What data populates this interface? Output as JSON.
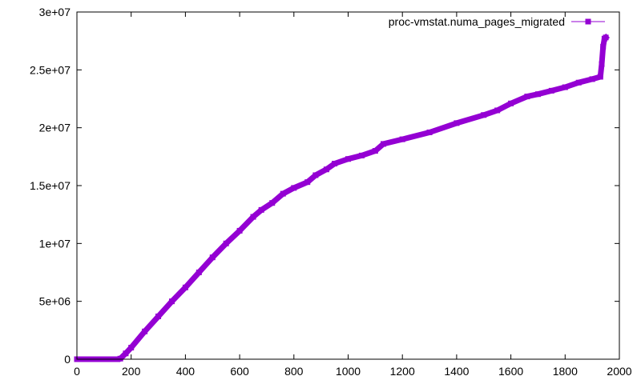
{
  "chart_data": {
    "type": "line",
    "title": "",
    "xlabel": "",
    "ylabel": "",
    "xlim": [
      0,
      2000
    ],
    "ylim": [
      0,
      30000000
    ],
    "grid": false,
    "legend_position": "top-right",
    "x_ticks": [
      {
        "value": 0,
        "label": "0"
      },
      {
        "value": 200,
        "label": "200"
      },
      {
        "value": 400,
        "label": "400"
      },
      {
        "value": 600,
        "label": "600"
      },
      {
        "value": 800,
        "label": "800"
      },
      {
        "value": 1000,
        "label": "1000"
      },
      {
        "value": 1200,
        "label": "1200"
      },
      {
        "value": 1400,
        "label": "1400"
      },
      {
        "value": 1600,
        "label": "1600"
      },
      {
        "value": 1800,
        "label": "1800"
      },
      {
        "value": 2000,
        "label": "2000"
      }
    ],
    "y_ticks": [
      {
        "value": 0,
        "label": "0"
      },
      {
        "value": 5000000,
        "label": "5e+06"
      },
      {
        "value": 10000000,
        "label": "1e+07"
      },
      {
        "value": 15000000,
        "label": "1.5e+07"
      },
      {
        "value": 20000000,
        "label": "2e+07"
      },
      {
        "value": 25000000,
        "label": "2.5e+07"
      },
      {
        "value": 30000000,
        "label": "3e+07"
      }
    ],
    "series": [
      {
        "name": "proc-vmstat.numa_pages_migrated",
        "color": "#9400d3",
        "marker": "square",
        "points": [
          [
            0,
            0
          ],
          [
            50,
            0
          ],
          [
            100,
            0
          ],
          [
            150,
            0
          ],
          [
            160,
            50000
          ],
          [
            180,
            500000
          ],
          [
            200,
            1000000
          ],
          [
            250,
            2400000
          ],
          [
            300,
            3700000
          ],
          [
            350,
            5000000
          ],
          [
            400,
            6200000
          ],
          [
            450,
            7500000
          ],
          [
            500,
            8800000
          ],
          [
            550,
            10000000
          ],
          [
            600,
            11100000
          ],
          [
            650,
            12300000
          ],
          [
            680,
            12900000
          ],
          [
            720,
            13500000
          ],
          [
            760,
            14300000
          ],
          [
            800,
            14800000
          ],
          [
            850,
            15300000
          ],
          [
            880,
            15900000
          ],
          [
            920,
            16400000
          ],
          [
            950,
            16900000
          ],
          [
            1000,
            17300000
          ],
          [
            1050,
            17600000
          ],
          [
            1100,
            18000000
          ],
          [
            1130,
            18600000
          ],
          [
            1200,
            19000000
          ],
          [
            1300,
            19600000
          ],
          [
            1400,
            20400000
          ],
          [
            1500,
            21100000
          ],
          [
            1550,
            21500000
          ],
          [
            1600,
            22100000
          ],
          [
            1660,
            22700000
          ],
          [
            1700,
            22900000
          ],
          [
            1750,
            23200000
          ],
          [
            1800,
            23500000
          ],
          [
            1850,
            23900000
          ],
          [
            1900,
            24200000
          ],
          [
            1930,
            24400000
          ],
          [
            1935,
            25500000
          ],
          [
            1940,
            27000000
          ],
          [
            1945,
            27700000
          ],
          [
            1950,
            27800000
          ]
        ]
      }
    ]
  }
}
